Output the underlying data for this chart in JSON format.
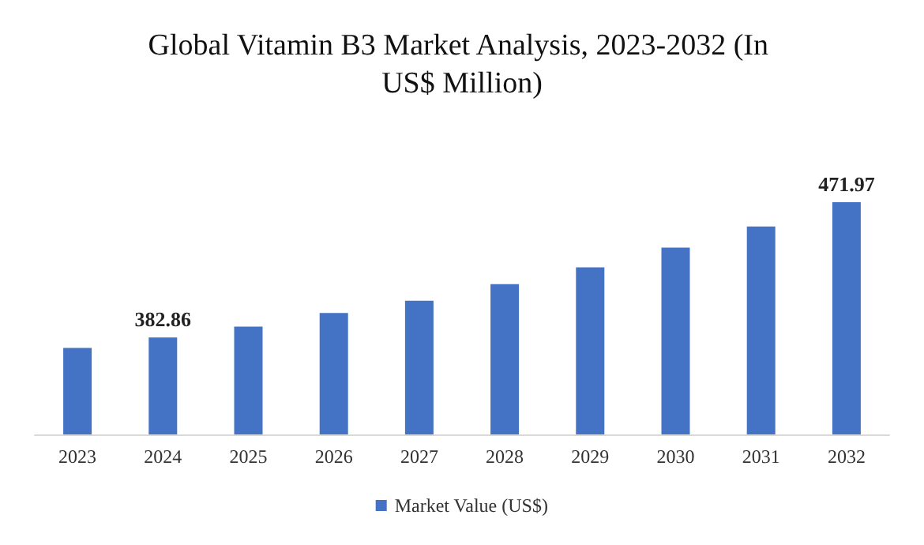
{
  "chart_data": {
    "type": "bar",
    "title": "Global Vitamin B3 Market Analysis, 2023-2032 (In US$ Million)",
    "categories": [
      "2023",
      "2024",
      "2025",
      "2026",
      "2027",
      "2028",
      "2029",
      "2030",
      "2031",
      "2032"
    ],
    "series": [
      {
        "name": "Market Value (US$)",
        "color": "#4472c4",
        "values": [
          376,
          382.86,
          390,
          399,
          407,
          418,
          429,
          442,
          456,
          471.97
        ],
        "value_labels": [
          null,
          "382.86",
          null,
          null,
          null,
          null,
          null,
          null,
          null,
          "471.97"
        ]
      }
    ],
    "ylim": [
      319,
      471.97
    ],
    "tick_labels": "x",
    "grid": false,
    "legend": "bottom"
  }
}
